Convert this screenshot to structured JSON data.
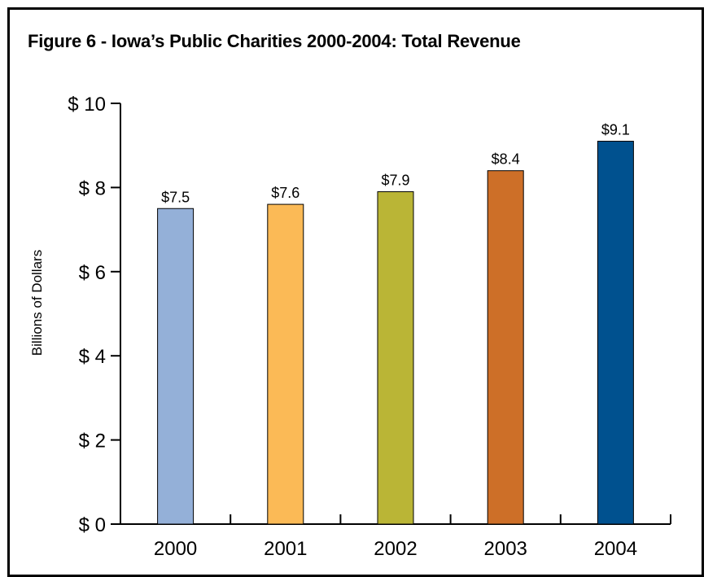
{
  "chart_data": {
    "type": "bar",
    "title": "Figure 6 - Iowa’s Public Charities 2000-2004: Total Revenue",
    "ylabel": "Billions of Dollars",
    "xlabel": "",
    "categories": [
      "2000",
      "2001",
      "2002",
      "2003",
      "2004"
    ],
    "values": [
      7.5,
      7.6,
      7.9,
      8.4,
      9.1
    ],
    "data_labels": [
      "$7.5",
      "$7.6",
      "$7.9",
      "$8.4",
      "$9.1"
    ],
    "colors": [
      "#94b0d8",
      "#fbba56",
      "#bab536",
      "#cd6f28",
      "#00518f"
    ],
    "ylim": [
      0,
      10
    ],
    "yticks": [
      0,
      2,
      4,
      6,
      8,
      10
    ],
    "ytick_labels": [
      "$ 0",
      "$ 2",
      "$ 4",
      "$ 6",
      "$ 8",
      "$ 10"
    ],
    "grid": false,
    "legend": "none"
  }
}
